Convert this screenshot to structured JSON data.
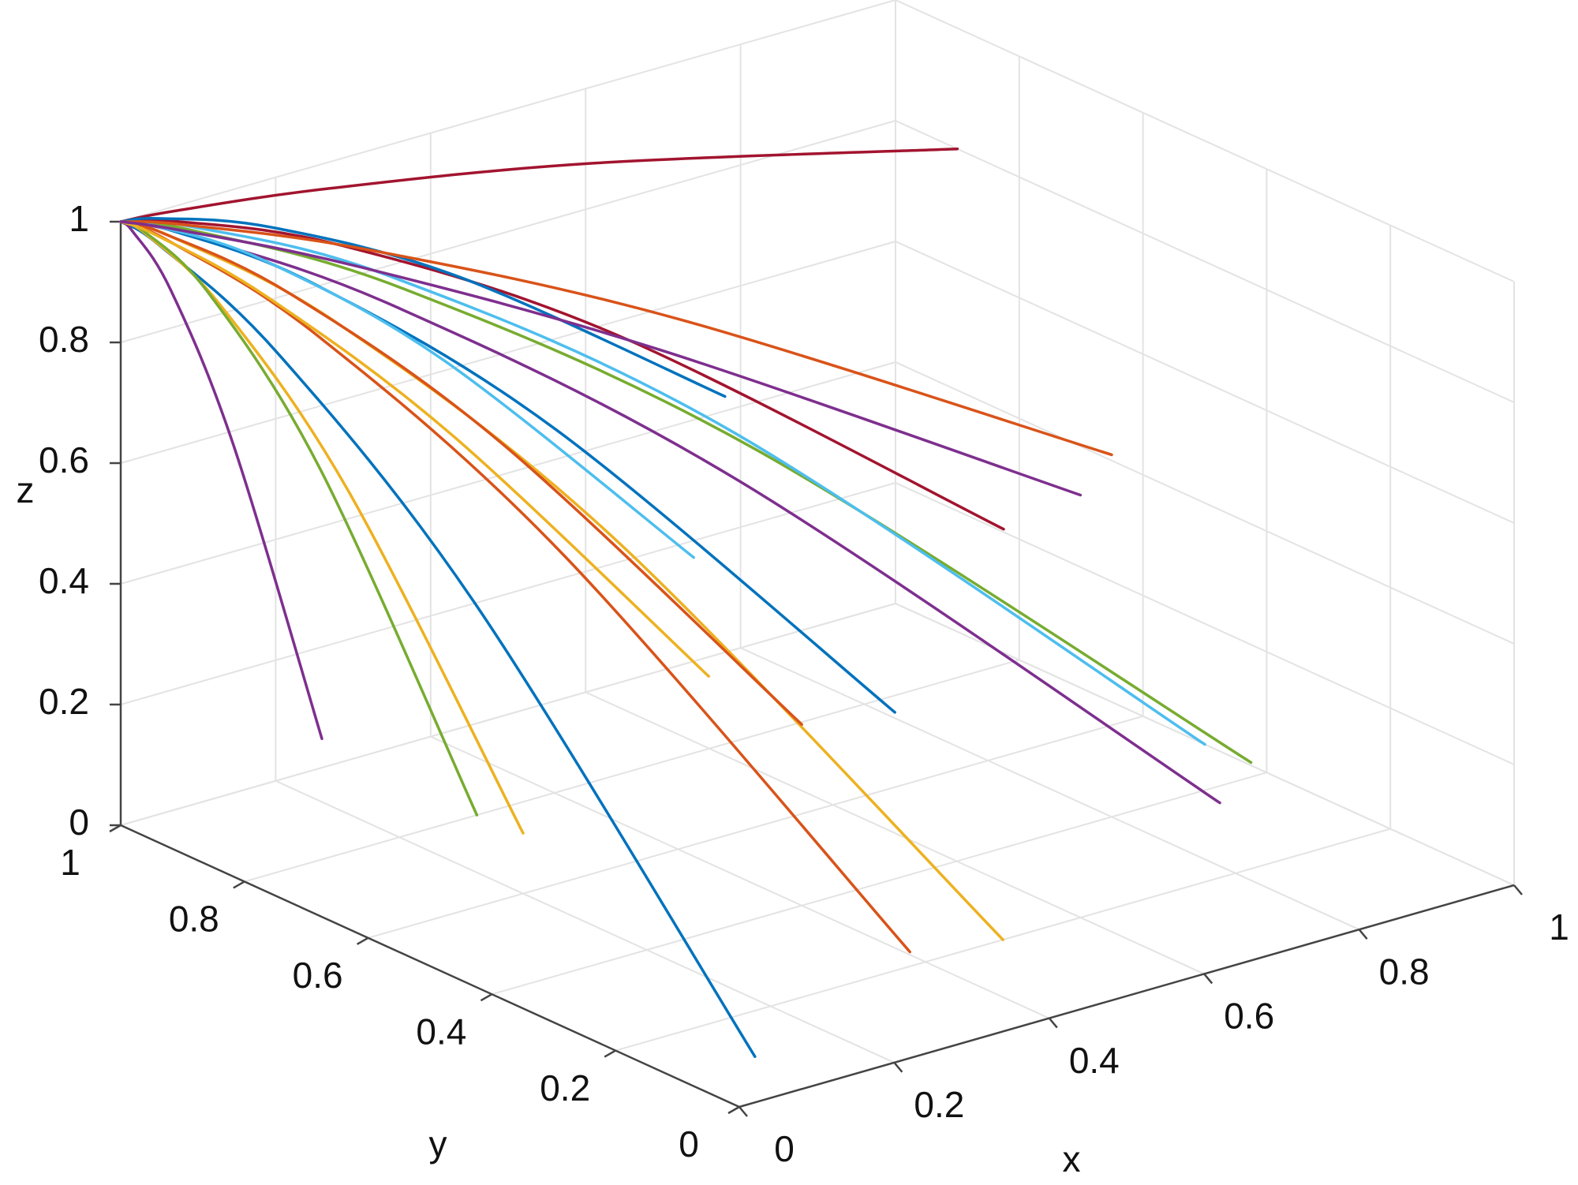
{
  "chart_data": {
    "type": "line3d",
    "xlabel": "x",
    "ylabel": "y",
    "zlabel": "z",
    "xlim": [
      0,
      1
    ],
    "ylim": [
      0,
      1
    ],
    "zlim": [
      0,
      1
    ],
    "xticks": [
      0,
      0.2,
      0.4,
      0.6,
      0.8,
      1
    ],
    "yticks": [
      0,
      0.2,
      0.4,
      0.6,
      0.8,
      1
    ],
    "zticks": [
      0,
      0.2,
      0.4,
      0.6,
      0.8,
      1
    ],
    "grid": true,
    "series": [
      {
        "color": "#0072BD",
        "x": [
          0.1,
          0.056,
          0.025,
          0.006,
          0
        ],
        "y": [
          0.1,
          0.494,
          0.775,
          0.944,
          1
        ],
        "z": [
          0,
          0.578,
          0.875,
          0.984,
          1
        ]
      },
      {
        "color": "#D95319",
        "x": [
          0.3,
          0.169,
          0.075,
          0.019,
          0
        ],
        "y": [
          0.1,
          0.494,
          0.775,
          0.944,
          1
        ],
        "z": [
          0.1,
          0.62,
          0.888,
          0.986,
          1
        ]
      },
      {
        "color": "#EDB120",
        "x": [
          0.5,
          0.281,
          0.125,
          0.031,
          0
        ],
        "y": [
          0.2,
          0.55,
          0.8,
          0.95,
          1
        ],
        "z": [
          0,
          0.578,
          0.875,
          0.984,
          1
        ]
      },
      {
        "color": "#7E2F8E",
        "x": [
          0.7,
          0.394,
          0.175,
          0.044,
          0
        ],
        "y": [
          0.1,
          0.494,
          0.775,
          0.944,
          1
        ],
        "z": [
          0.2,
          0.662,
          0.9,
          0.987,
          1
        ]
      },
      {
        "color": "#77AC30",
        "x": [
          0.9,
          0.506,
          0.225,
          0.056,
          0
        ],
        "y": [
          0.3,
          0.606,
          0.825,
          0.956,
          1
        ],
        "z": [
          0.1,
          0.62,
          0.888,
          0.986,
          1
        ]
      },
      {
        "color": "#4DBEEE",
        "x": [
          1,
          0.563,
          0.25,
          0.063,
          0
        ],
        "y": [
          0.5,
          0.719,
          0.875,
          0.969,
          1
        ],
        "z": [
          0,
          0.578,
          0.875,
          0.984,
          1
        ]
      },
      {
        "color": "#A2142F",
        "x": [
          0.9,
          0.506,
          0.225,
          0.056,
          0
        ],
        "y": [
          0.7,
          0.831,
          0.925,
          0.981,
          1
        ],
        "z": [
          0.3,
          0.705,
          0.913,
          0.989,
          1
        ]
      },
      {
        "color": "#A2142F",
        "x": [
          1,
          0.563,
          0.25,
          0.063,
          0
        ],
        "y": [
          0.9,
          0.944,
          0.975,
          0.994,
          1
        ],
        "z": [
          0.8,
          0.916,
          0.975,
          0.997,
          1
        ]
      },
      {
        "color": "#0072BD",
        "x": [
          0.6,
          0.338,
          0.15,
          0.038,
          0
        ],
        "y": [
          0.5,
          0.719,
          0.875,
          0.969,
          1
        ],
        "z": [
          0.2,
          0.662,
          0.9,
          0.987,
          1
        ]
      },
      {
        "color": "#D95319",
        "x": [
          0.4,
          0.225,
          0.1,
          0.025,
          0
        ],
        "y": [
          0.4,
          0.663,
          0.85,
          0.963,
          1
        ],
        "z": [
          0.3,
          0.705,
          0.913,
          0.989,
          1
        ]
      },
      {
        "color": "#EDB120",
        "x": [
          0.2,
          0.113,
          0.05,
          0.013,
          0
        ],
        "y": [
          0.6,
          0.775,
          0.9,
          0.975,
          1
        ],
        "z": [
          0.1,
          0.62,
          0.888,
          0.986,
          1
        ]
      },
      {
        "color": "#7E2F8E",
        "x": [
          0.1,
          0.056,
          0.025,
          0.006,
          0
        ],
        "y": [
          0.8,
          0.888,
          0.95,
          0.988,
          1
        ],
        "z": [
          0.2,
          0.662,
          0.9,
          0.987,
          1
        ]
      },
      {
        "color": "#77AC30",
        "x": [
          0.3,
          0.169,
          0.075,
          0.019,
          0
        ],
        "y": [
          0.8,
          0.888,
          0.95,
          0.988,
          1
        ],
        "z": [
          0,
          0.578,
          0.875,
          0.984,
          1
        ]
      },
      {
        "color": "#4DBEEE",
        "x": [
          0.5,
          0.281,
          0.125,
          0.031,
          0
        ],
        "y": [
          0.7,
          0.831,
          0.925,
          0.981,
          1
        ],
        "z": [
          0.4,
          0.747,
          0.925,
          0.99,
          1
        ]
      },
      {
        "color": "#0072BD",
        "x": [
          0.7,
          0.394,
          0.175,
          0.044,
          0
        ],
        "y": [
          0.9,
          0.944,
          0.975,
          0.994,
          1
        ],
        "z": [
          0.5,
          0.789,
          0.938,
          0.992,
          1
        ]
      },
      {
        "color": "#D95319",
        "x": [
          0.8,
          0.45,
          0.2,
          0.05,
          0
        ],
        "y": [
          0.4,
          0.663,
          0.85,
          0.963,
          1
        ],
        "z": [
          0.6,
          0.831,
          0.95,
          0.994,
          1
        ]
      },
      {
        "color": "#EDB120",
        "x": [
          0.2,
          0.113,
          0.05,
          0.013,
          0
        ],
        "y": [
          0.3,
          0.606,
          0.825,
          0.956,
          1
        ],
        "z": [
          0.5,
          0.789,
          0.938,
          0.992,
          1
        ]
      },
      {
        "color": "#7E2F8E",
        "x": [
          0.6,
          0.338,
          0.15,
          0.038,
          0
        ],
        "y": [
          0.2,
          0.55,
          0.8,
          0.95,
          1
        ],
        "z": [
          0.7,
          0.873,
          0.963,
          0.995,
          1
        ]
      }
    ]
  }
}
